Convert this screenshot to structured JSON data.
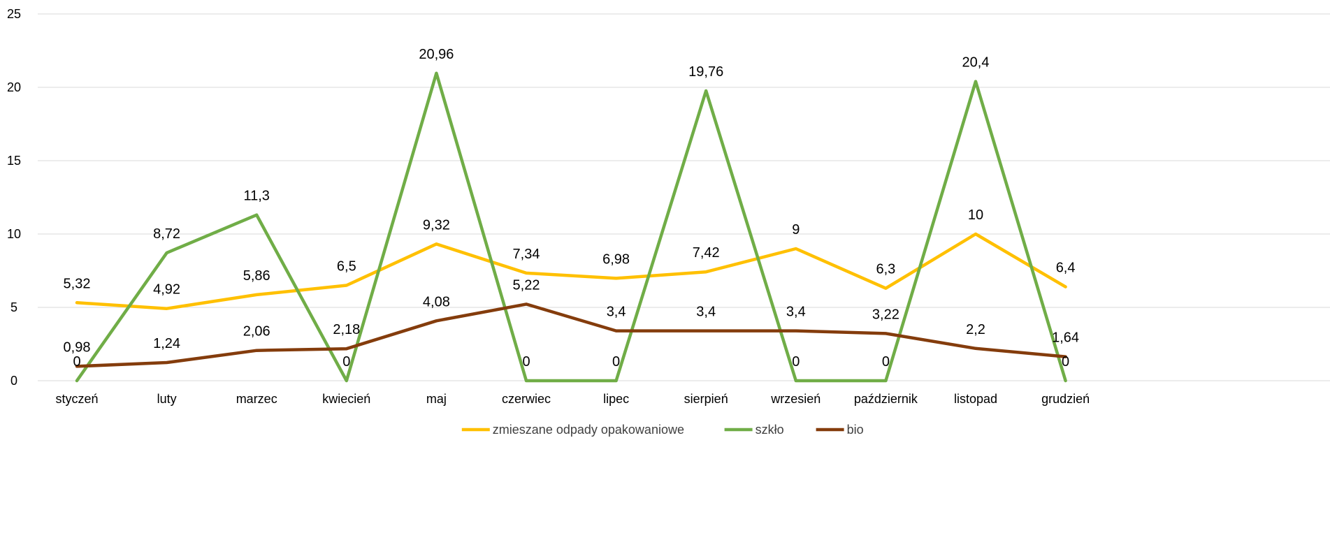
{
  "chart_data": {
    "type": "line",
    "categories": [
      "styczeń",
      "luty",
      "marzec",
      "kwiecień",
      "maj",
      "czerwiec",
      "lipec",
      "sierpień",
      "wrzesień",
      "październik",
      "listopad",
      "grudzień"
    ],
    "y_ticks": [
      "0",
      "5",
      "10",
      "15",
      "20",
      "25"
    ],
    "ylim": [
      0,
      25
    ],
    "grid": true,
    "legend_position": "bottom",
    "series": [
      {
        "name": "zmieszane odpady opakowaniowe",
        "color": "#FFC000",
        "values": [
          5.32,
          4.92,
          5.86,
          6.5,
          9.32,
          7.34,
          6.98,
          7.42,
          9,
          6.3,
          10,
          6.4
        ],
        "labels": [
          "5,32",
          "4,92",
          "5,86",
          "6,5",
          "9,32",
          "7,34",
          "6,98",
          "7,42",
          "9",
          "6,3",
          "10",
          "6,4"
        ]
      },
      {
        "name": "szkło",
        "color": "#70AD47",
        "values": [
          0,
          8.72,
          11.3,
          0,
          20.96,
          0,
          0,
          19.76,
          0,
          0,
          20.4,
          0
        ],
        "labels": [
          "0",
          "8,72",
          "11,3",
          "0",
          "20,96",
          "0",
          "0",
          "19,76",
          "0",
          "0",
          "20,4",
          "0"
        ]
      },
      {
        "name": "bio",
        "color": "#843C0C",
        "values": [
          0.98,
          1.24,
          2.06,
          2.18,
          4.08,
          5.22,
          3.4,
          3.4,
          3.4,
          3.22,
          2.2,
          1.64
        ],
        "labels": [
          "0,98",
          "1,24",
          "2,06",
          "2,18",
          "4,08",
          "5,22",
          "3,4",
          "3,4",
          "3,4",
          "3,22",
          "2,2",
          "1,64"
        ]
      }
    ]
  }
}
